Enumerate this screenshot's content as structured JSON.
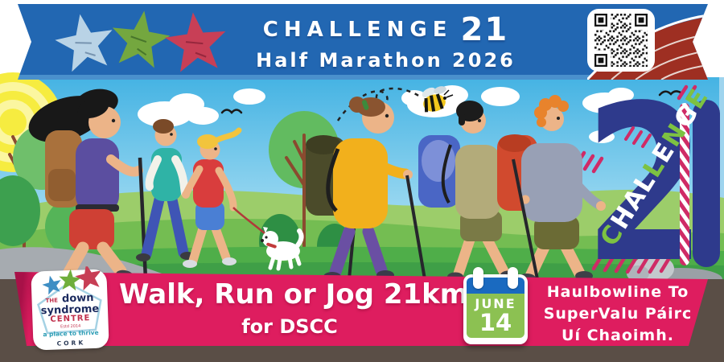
{
  "banner": {
    "title": "CHALLENGE",
    "title_number": "21",
    "subtitle": "Half Marathon 2026",
    "bg_color": "#2267b2",
    "star_colors": [
      "#b9d3e6",
      "#74a73f",
      "#c83f56"
    ]
  },
  "challenge21_logo": {
    "digit": "2",
    "word": "CHALLENGE",
    "accent_indices": [
      0,
      4,
      6,
      8
    ],
    "navy": "#2e3a8c",
    "stripe_magenta": "#cf2b66",
    "accent_green": "#7dc242"
  },
  "footer": {
    "line1": "Walk, Run or Jog 21km",
    "line2": "for DSCC",
    "bar_color": "#de1d5f",
    "ground_color": "#5a4e46",
    "calendar": {
      "month": "JUNE",
      "day": "14",
      "header_color": "#1a6ac0",
      "body_color": "#8cc152"
    },
    "location_lines": [
      "Haulbowline To",
      "SuperValu Páirc",
      "Uí Chaoimh."
    ]
  },
  "charity_logo": {
    "the": "THE",
    "down": "down",
    "syndrome": "syndrome",
    "centre": "CENTRE",
    "estd": "Estd 2014",
    "tagline": "a place to thrive",
    "city": "CORK"
  },
  "icons": {
    "qr": "qr-code",
    "track": "running-track",
    "sun": "sun",
    "bee": "bee",
    "dog": "dog",
    "stars": "hand-drawn-stars",
    "calendar": "calendar"
  }
}
